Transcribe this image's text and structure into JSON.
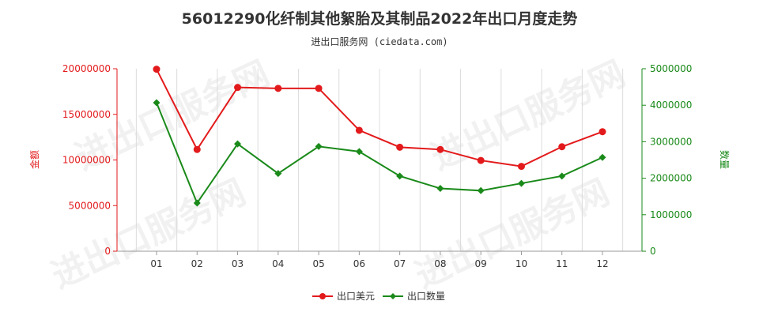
{
  "chart_data": {
    "type": "line",
    "title": "56012290化纤制其他絮胎及其制品2022年出口月度走势",
    "subtitle": "进出口服务网 (ciedata.com)",
    "categories": [
      "01",
      "02",
      "03",
      "04",
      "05",
      "06",
      "07",
      "08",
      "09",
      "10",
      "11",
      "12"
    ],
    "series": [
      {
        "name": "出口美元",
        "axis": "left",
        "color": "#e31a1c",
        "values": [
          19950000,
          11150000,
          17950000,
          17850000,
          17850000,
          13250000,
          11400000,
          11150000,
          9950000,
          9300000,
          11450000,
          13100000
        ]
      },
      {
        "name": "出口数量",
        "axis": "right",
        "color": "#1a8a1a",
        "values": [
          4070000,
          1320000,
          2940000,
          2130000,
          2870000,
          2730000,
          2060000,
          1720000,
          1660000,
          1860000,
          2060000,
          2570000
        ]
      }
    ],
    "y_left": {
      "label": "金额",
      "color": "#e31a1c",
      "ylim": [
        0,
        20000000
      ],
      "ticks": [
        "0",
        "5000000",
        "10000000",
        "15000000",
        "20000000"
      ],
      "tick_values": [
        0,
        5000000,
        10000000,
        15000000,
        20000000
      ]
    },
    "y_right": {
      "label": "数量",
      "color": "#1a8a1a",
      "ylim": [
        0,
        5000000
      ],
      "ticks": [
        "0",
        "1000000",
        "2000000",
        "3000000",
        "4000000",
        "5000000"
      ],
      "tick_values": [
        0,
        1000000,
        2000000,
        3000000,
        4000000,
        5000000
      ]
    },
    "grid": "vertical",
    "legend_position": "bottom-center"
  }
}
